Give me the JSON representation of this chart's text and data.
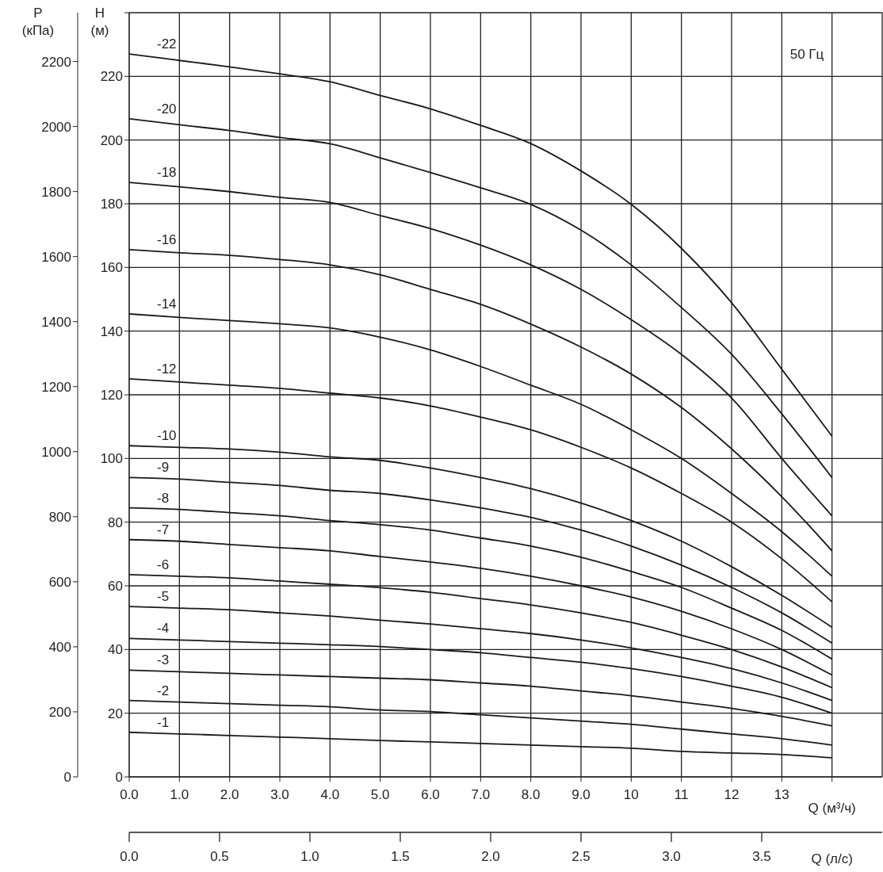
{
  "chart_data": {
    "type": "line",
    "ylabel": "H (м)",
    "y2label": "P (кПа)",
    "xlabel": "Q (м³/ч)",
    "x2label": "Q (л/с)",
    "x": [
      0,
      1,
      2,
      3,
      4,
      5,
      6,
      7,
      8,
      9,
      10,
      11,
      12,
      13,
      14
    ],
    "series": [
      {
        "name": "-22",
        "color": "#1a1a1a",
        "values": [
          227,
          225,
          223,
          220.8,
          218.3,
          214,
          209.8,
          204.6,
          198.9,
          190.3,
          179.8,
          166,
          148.9,
          128,
          107
        ]
      },
      {
        "name": "-20",
        "color": "#1a1a1a",
        "values": [
          206.7,
          204.8,
          203,
          200.8,
          198.8,
          194.4,
          189.8,
          185,
          179.8,
          171.7,
          160.8,
          147.4,
          132.7,
          114,
          94
        ]
      },
      {
        "name": "-18",
        "color": "#1a1a1a",
        "values": [
          186.7,
          185.3,
          183.8,
          182,
          180.4,
          176.3,
          172.2,
          167,
          160.8,
          153.1,
          143.6,
          132.7,
          119,
          100,
          82
        ]
      },
      {
        "name": "-16",
        "color": "#1a1a1a",
        "values": [
          165.6,
          164.6,
          163.8,
          162.5,
          160.8,
          157.7,
          153.1,
          148.4,
          142.2,
          135,
          126.5,
          116,
          103,
          88,
          71
        ]
      },
      {
        "name": "-14",
        "color": "#1a1a1a",
        "values": [
          145.4,
          144.3,
          143.3,
          142.3,
          141,
          138.1,
          134.1,
          128.9,
          123,
          117,
          109,
          100,
          89,
          77,
          63
        ]
      },
      {
        "name": "-12",
        "color": "#1a1a1a",
        "values": [
          125,
          124,
          123,
          122,
          120.5,
          119,
          116.5,
          113,
          109,
          103.5,
          97,
          89,
          80,
          68.5,
          55
        ]
      },
      {
        "name": "-10",
        "color": "#1a1a1a",
        "values": [
          104,
          103.5,
          103,
          102,
          100.5,
          99.4,
          97,
          94,
          90.5,
          86,
          80.5,
          74,
          66,
          57,
          47
        ]
      },
      {
        "name": "-9",
        "color": "#1a1a1a",
        "values": [
          94,
          93.5,
          92.5,
          91.5,
          90,
          89,
          87,
          84.5,
          81.5,
          77.5,
          72.5,
          66.5,
          59.5,
          51.5,
          42
        ]
      },
      {
        "name": "-8",
        "color": "#1a1a1a",
        "values": [
          84.5,
          84,
          83,
          82,
          80.5,
          79.2,
          77.5,
          75,
          72.5,
          69,
          64.5,
          59.5,
          53,
          46,
          37
        ]
      },
      {
        "name": "-7",
        "color": "#1a1a1a",
        "values": [
          74.5,
          74,
          73,
          72,
          71,
          69.2,
          67.5,
          65.5,
          63,
          60,
          56.5,
          52,
          46.5,
          40,
          32
        ]
      },
      {
        "name": "-6",
        "color": "#1a1a1a",
        "values": [
          63.5,
          63,
          62.5,
          61.5,
          60.5,
          59.4,
          58,
          56,
          54,
          51.5,
          48.5,
          44.5,
          40,
          34.5,
          28
        ]
      },
      {
        "name": "-5",
        "color": "#1a1a1a",
        "values": [
          53.5,
          53,
          52.5,
          51.5,
          50.5,
          49.2,
          48,
          46.5,
          45,
          43,
          40.5,
          37.5,
          34,
          29.5,
          24
        ]
      },
      {
        "name": "-4",
        "color": "#1a1a1a",
        "values": [
          43.5,
          43,
          42.5,
          42,
          41.5,
          40.9,
          40,
          39,
          37.5,
          36,
          34,
          31.5,
          28.5,
          25,
          20
        ]
      },
      {
        "name": "-3",
        "color": "#1a1a1a",
        "values": [
          33.5,
          33,
          32.5,
          32,
          31.5,
          31,
          30.5,
          29.5,
          28.5,
          27,
          25.5,
          23.5,
          21.5,
          19,
          16
        ]
      },
      {
        "name": "-2",
        "color": "#1a1a1a",
        "values": [
          24,
          23.5,
          23,
          22.5,
          22,
          21,
          20.5,
          19.5,
          18.5,
          17.5,
          16.5,
          15,
          13.5,
          12,
          10
        ]
      },
      {
        "name": "-1",
        "color": "#1a1a1a",
        "values": [
          14,
          13.5,
          13,
          12.5,
          12,
          11.4,
          11,
          10.5,
          10,
          9.5,
          9,
          8,
          7.5,
          7,
          6
        ]
      }
    ],
    "xlim": [
      0,
      15
    ],
    "xticks": [
      {
        "value": 0,
        "label": "0.0"
      },
      {
        "value": 1,
        "label": "1.0"
      },
      {
        "value": 2,
        "label": "2.0"
      },
      {
        "value": 3,
        "label": "3.0"
      },
      {
        "value": 4,
        "label": "4.0"
      },
      {
        "value": 5,
        "label": "5.0"
      },
      {
        "value": 6,
        "label": "6.0"
      },
      {
        "value": 7,
        "label": "7.0"
      },
      {
        "value": 8,
        "label": "8.0"
      },
      {
        "value": 9,
        "label": "9.0"
      },
      10,
      11,
      12,
      13,
      {
        "value": 14,
        "label": null
      }
    ],
    "ylim": [
      0,
      240
    ],
    "yticks": [
      0,
      20,
      40,
      60,
      80,
      100,
      120,
      140,
      160,
      180,
      200,
      220,
      {
        "value": 240,
        "label": null
      }
    ],
    "y2lim": [
      0,
      2350
    ],
    "y2ticks": [
      0,
      200,
      400,
      600,
      800,
      1000,
      1200,
      1400,
      1600,
      1800,
      2000,
      2200
    ],
    "x2lim": [
      0,
      4.1667
    ],
    "x2ticks": [
      {
        "value": 0,
        "label": "0.0"
      },
      {
        "value": 0.5,
        "label": "0.5"
      },
      {
        "value": 1,
        "label": "1.0"
      },
      {
        "value": 1.5,
        "label": "1.5"
      },
      {
        "value": 2,
        "label": "2.0"
      },
      {
        "value": 2.5,
        "label": "2.5"
      },
      {
        "value": 3,
        "label": "3.0"
      },
      {
        "value": 3.5,
        "label": "3.5"
      }
    ],
    "annotations": [
      "50 Гц"
    ],
    "grid": true,
    "legend": false,
    "marker": "none",
    "line_style": "solid"
  }
}
